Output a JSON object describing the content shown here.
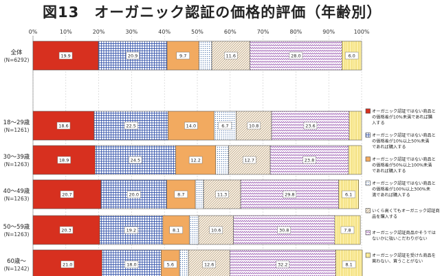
{
  "title": "図13　オーガニック認証の価格的評価（年齢別）",
  "chart_data": {
    "type": "bar",
    "orientation": "horizontal",
    "stacked": true,
    "title": "図13　オーガニック認証の価格的評価（年齢別）",
    "xlim": [
      0,
      100
    ],
    "x_ticks": [
      "0%",
      "10%",
      "20%",
      "30%",
      "40%",
      "50%",
      "60%",
      "70%",
      "80%",
      "90%",
      "100%"
    ],
    "grid": true,
    "legend_position": "right",
    "categories": [
      {
        "label": "全体",
        "sub": "(N=6292)"
      },
      {
        "label": "18〜29歳",
        "sub": "(N=1261)"
      },
      {
        "label": "30〜39歳",
        "sub": "(N=1263)"
      },
      {
        "label": "40〜49歳",
        "sub": "(N=1263)"
      },
      {
        "label": "50〜59歳",
        "sub": "(N=1263)"
      },
      {
        "label": "60歳〜",
        "sub": "(N=1242)"
      }
    ],
    "series": [
      {
        "name": "オーガニック認証ではない商品との価格差が10%未満であれば購入する",
        "color": "#d7301f",
        "pattern": "solid",
        "values": [
          19.9,
          18.6,
          18.9,
          20.7,
          20.3,
          21.0
        ]
      },
      {
        "name": "オーガニック認証ではない商品との価格差が10%以上50%未満であれば購入する",
        "color": "#2f4fa8",
        "pattern": "grid",
        "values": [
          20.9,
          22.5,
          24.5,
          20.0,
          19.2,
          18.0
        ]
      },
      {
        "name": "オーガニック認証ではない商品との価格差が50%以上100%未満であれば購入する",
        "color": "#f2aa60",
        "pattern": "solid",
        "values": [
          9.7,
          14.0,
          12.2,
          8.7,
          8.1,
          5.6
        ]
      },
      {
        "name": "オーガニック認証ではない商品との価格差が100%以上300%未満であれば購入する",
        "color": "#5b7fb0",
        "pattern": "dots",
        "values": [
          3.9,
          6.7,
          3.9,
          2.5,
          2.8,
          2.7
        ]
      },
      {
        "name": "いくら高くてもオーガニック認証商品を購入する",
        "color": "#a08058",
        "pattern": "diagonal",
        "values": [
          11.6,
          10.8,
          12.7,
          11.3,
          10.6,
          12.6
        ]
      },
      {
        "name": "オーガニック認証商品かそうではないかに強いこだわりがない",
        "color": "#9a58b0",
        "pattern": "zigzag",
        "values": [
          28.0,
          23.6,
          23.8,
          29.8,
          30.8,
          32.2
        ]
      },
      {
        "name": "オーガニック認証を受けた商品を買わない、買うことがない",
        "color": "#f2dc50",
        "pattern": "vlines",
        "values": [
          6.0,
          3.8,
          4.0,
          6.1,
          7.8,
          8.1
        ]
      }
    ],
    "value_labels": [
      [
        "19.9",
        "20.9",
        "9.7",
        "",
        "11.6",
        "28.0",
        "6.0"
      ],
      [
        "18.6",
        "22.5",
        "14.0",
        "6.7",
        "10.8",
        "23.6",
        ""
      ],
      [
        "18.9",
        "24.5",
        "12.2",
        "",
        "12.7",
        "23.8",
        ""
      ],
      [
        "20.7",
        "20.0",
        "8.7",
        "",
        "11.3",
        "29.8",
        "6.1"
      ],
      [
        "20.3",
        "19.2",
        "8.1",
        "",
        "10.6",
        "30.8",
        "7.8"
      ],
      [
        "21.0",
        "18.0",
        "5.6",
        "",
        "12.6",
        "32.2",
        "8.1"
      ]
    ],
    "legend_lines": [
      [
        "オーガニック認証ではない商品と",
        "の価格差が10%未満であれば購",
        "入する"
      ],
      [
        "オーガニック認証ではない商品と",
        "の価格差が10%以上50%未満",
        "であれば購入する"
      ],
      [
        "オーガニック認証ではない商品と",
        "の価格差が50%以上100%未満",
        "であれば購入する"
      ],
      [
        "オーガニック認証ではない商品と",
        "の価格差が100%以上300%未",
        "満であれば購入する"
      ],
      [
        "いくら高くてもオーガニック認証商",
        "品を購入する"
      ],
      [
        "オーガニック認証商品かそうでは",
        "ないかに強いこだわりがない"
      ],
      [
        "オーガニック認証を受けた商品を",
        "買わない、買うことがない"
      ]
    ]
  }
}
